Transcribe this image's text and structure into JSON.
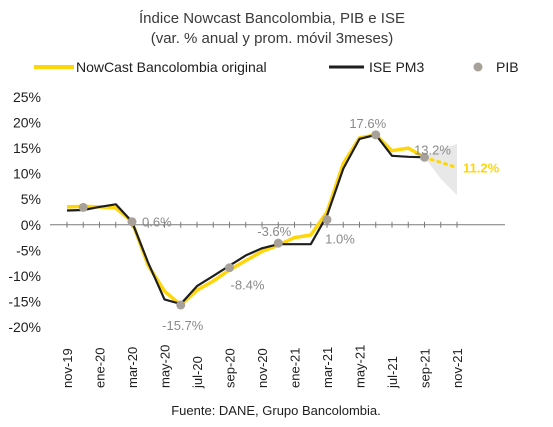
{
  "chart_data": {
    "type": "line",
    "title": "Índice Nowcast Bancolombia, PIB e ISE",
    "subtitle": "(var. % anual y prom. móvil 3meses)",
    "source": "Fuente: DANE, Grupo Bancolombia.",
    "legend_placement": "top",
    "grid": false,
    "y_axis": {
      "min": -20,
      "max": 25,
      "step": 5,
      "format": "percent",
      "tick_labels": [
        "25%",
        "20%",
        "15%",
        "10%",
        "5%",
        "0%",
        "-5%",
        "-10%",
        "-15%",
        "-20%"
      ]
    },
    "x_axis": {
      "months": [
        "nov-19",
        "dic-19",
        "ene-20",
        "feb-20",
        "mar-20",
        "abr-20",
        "may-20",
        "jun-20",
        "jul-20",
        "ago-20",
        "sep-20",
        "oct-20",
        "nov-20",
        "dic-20",
        "ene-21",
        "feb-21",
        "mar-21",
        "abr-21",
        "may-21",
        "jun-21",
        "jul-21",
        "ago-21",
        "sep-21",
        "oct-21",
        "nov-21"
      ],
      "tick_labels": [
        "nov-19",
        "ene-20",
        "mar-20",
        "may-20",
        "jul-20",
        "sep-20",
        "nov-20",
        "ene-21",
        "mar-21",
        "may-21",
        "jul-21",
        "sep-21",
        "nov-21"
      ]
    },
    "series": [
      {
        "name": "NowCast Bancolombia original",
        "color": "#FFD60A",
        "values": [
          3.5,
          3.6,
          3.5,
          3.3,
          0.6,
          -8.0,
          -13.0,
          -15.7,
          -12.8,
          -11.0,
          -8.8,
          -7.0,
          -5.2,
          -4.0,
          -2.5,
          -2.0,
          2.5,
          12.0,
          17.0,
          17.6,
          14.5,
          15.0,
          13.2,
          null,
          null
        ]
      },
      {
        "name": "ISE PM3",
        "color": "#1E1E1E",
        "values": [
          2.8,
          2.9,
          3.5,
          4.0,
          0.6,
          -7.5,
          -14.6,
          -15.5,
          -12.0,
          -10.0,
          -8.0,
          -6.0,
          -4.6,
          -3.8,
          -3.8,
          -3.8,
          1.8,
          11.0,
          16.8,
          17.6,
          13.5,
          13.3,
          13.2,
          null,
          null
        ]
      },
      {
        "name": "PIB",
        "color": "#A8A19A",
        "marker": "circle",
        "points": [
          {
            "month": "dic-19",
            "value": 3.4
          },
          {
            "month": "mar-20",
            "value": 0.6
          },
          {
            "month": "jun-20",
            "value": -15.7
          },
          {
            "month": "sep-20",
            "value": -8.4
          },
          {
            "month": "dic-20",
            "value": -3.6
          },
          {
            "month": "mar-21",
            "value": 1.0
          },
          {
            "month": "jun-21",
            "value": 17.6
          },
          {
            "month": "sep-21",
            "value": 13.2
          }
        ]
      }
    ],
    "forecast": {
      "color": "#FFD60A",
      "band_color": "#D9D9D9",
      "points": [
        {
          "month": "sep-21",
          "value": 13.2,
          "low": 13.2,
          "high": 13.2
        },
        {
          "month": "oct-21",
          "value": 12.2,
          "low": 9.0,
          "high": 14.8
        },
        {
          "month": "nov-21",
          "value": 11.2,
          "low": 5.8,
          "high": 15.8
        }
      ]
    },
    "annotations": [
      {
        "text": "0.6%",
        "month": "mar-20",
        "value": 0.6,
        "color": "#8A8A8A"
      },
      {
        "text": "-15.7%",
        "month": "jun-20",
        "value": -15.7,
        "color": "#8A8A8A"
      },
      {
        "text": "-8.4%",
        "month": "sep-20",
        "value": -8.4,
        "color": "#8A8A8A"
      },
      {
        "text": "-3.6%",
        "month": "dic-20",
        "value": -3.6,
        "color": "#8A8A8A"
      },
      {
        "text": "1.0%",
        "month": "mar-21",
        "value": 1.0,
        "color": "#8A8A8A"
      },
      {
        "text": "17.6%",
        "month": "jun-21",
        "value": 17.6,
        "color": "#8A8A8A"
      },
      {
        "text": "13.2%",
        "month": "sep-21",
        "value": 13.2,
        "color": "#8A8A8A"
      },
      {
        "text": "11.2%",
        "month": "nov-21",
        "value": 11.2,
        "color": "#FFD60A"
      }
    ]
  }
}
